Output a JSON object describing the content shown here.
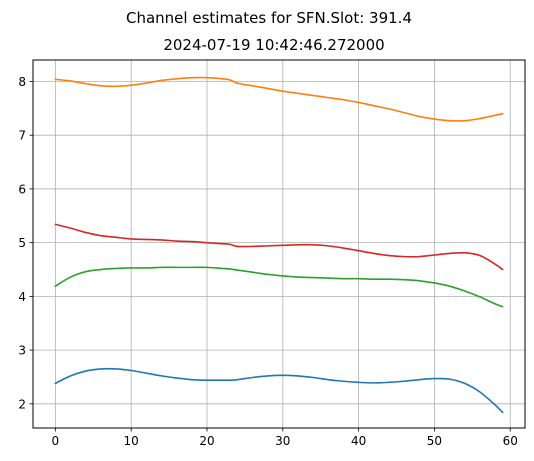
{
  "chart_data": {
    "type": "line",
    "title": "Channel estimates for SFN.Slot: 391.4",
    "subtitle": "2024-07-19 10:42:46.272000",
    "xlabel": "",
    "ylabel": "",
    "xlim": [
      -2.95,
      61.95
    ],
    "ylim": [
      1.55,
      8.4
    ],
    "xticks": [
      0,
      10,
      20,
      30,
      40,
      50,
      60
    ],
    "yticks": [
      2,
      3,
      4,
      5,
      6,
      7,
      8
    ],
    "grid": true,
    "legend": "none",
    "series": [
      {
        "color": "#1f77b4",
        "x": [
          0,
          2,
          4,
          6,
          8,
          10,
          12,
          14,
          16,
          18,
          20,
          22,
          23,
          24,
          26,
          28,
          30,
          32,
          34,
          36,
          38,
          40,
          42,
          44,
          46,
          48,
          50,
          52,
          54,
          56,
          58,
          59
        ],
        "y": [
          2.38,
          2.52,
          2.61,
          2.65,
          2.65,
          2.62,
          2.57,
          2.52,
          2.48,
          2.45,
          2.44,
          2.44,
          2.44,
          2.45,
          2.49,
          2.52,
          2.53,
          2.52,
          2.49,
          2.45,
          2.42,
          2.4,
          2.39,
          2.4,
          2.42,
          2.45,
          2.47,
          2.46,
          2.38,
          2.22,
          1.98,
          1.84
        ]
      },
      {
        "color": "#ff7f0e",
        "x": [
          0,
          2,
          4,
          6,
          8,
          10,
          12,
          14,
          16,
          18,
          20,
          22,
          23,
          24,
          26,
          28,
          30,
          32,
          34,
          36,
          38,
          40,
          42,
          44,
          46,
          48,
          50,
          52,
          54,
          56,
          58,
          59
        ],
        "y": [
          8.04,
          8.01,
          7.96,
          7.92,
          7.91,
          7.93,
          7.97,
          8.02,
          8.05,
          8.07,
          8.07,
          8.05,
          8.03,
          7.97,
          7.92,
          7.87,
          7.82,
          7.78,
          7.74,
          7.7,
          7.66,
          7.61,
          7.55,
          7.49,
          7.42,
          7.35,
          7.3,
          7.27,
          7.27,
          7.31,
          7.37,
          7.4
        ]
      },
      {
        "color": "#2ca02c",
        "x": [
          0,
          2,
          4,
          6,
          8,
          10,
          12,
          14,
          16,
          18,
          20,
          22,
          23,
          24,
          26,
          28,
          30,
          32,
          34,
          36,
          38,
          40,
          42,
          44,
          46,
          48,
          50,
          52,
          54,
          56,
          58,
          59
        ],
        "y": [
          4.19,
          4.36,
          4.46,
          4.5,
          4.52,
          4.53,
          4.53,
          4.54,
          4.54,
          4.54,
          4.54,
          4.52,
          4.51,
          4.49,
          4.45,
          4.41,
          4.38,
          4.36,
          4.35,
          4.34,
          4.33,
          4.33,
          4.32,
          4.32,
          4.31,
          4.29,
          4.25,
          4.19,
          4.1,
          3.99,
          3.86,
          3.81
        ]
      },
      {
        "color": "#d62728",
        "x": [
          0,
          2,
          4,
          6,
          8,
          10,
          12,
          14,
          16,
          18,
          20,
          22,
          23,
          24,
          26,
          28,
          30,
          32,
          34,
          36,
          38,
          40,
          42,
          44,
          46,
          48,
          50,
          52,
          54,
          56,
          58,
          59
        ],
        "y": [
          5.34,
          5.27,
          5.19,
          5.13,
          5.1,
          5.07,
          5.06,
          5.05,
          5.03,
          5.02,
          5.0,
          4.98,
          4.97,
          4.93,
          4.93,
          4.94,
          4.95,
          4.96,
          4.96,
          4.94,
          4.9,
          4.85,
          4.8,
          4.76,
          4.74,
          4.74,
          4.77,
          4.8,
          4.81,
          4.76,
          4.6,
          4.5
        ]
      }
    ]
  }
}
